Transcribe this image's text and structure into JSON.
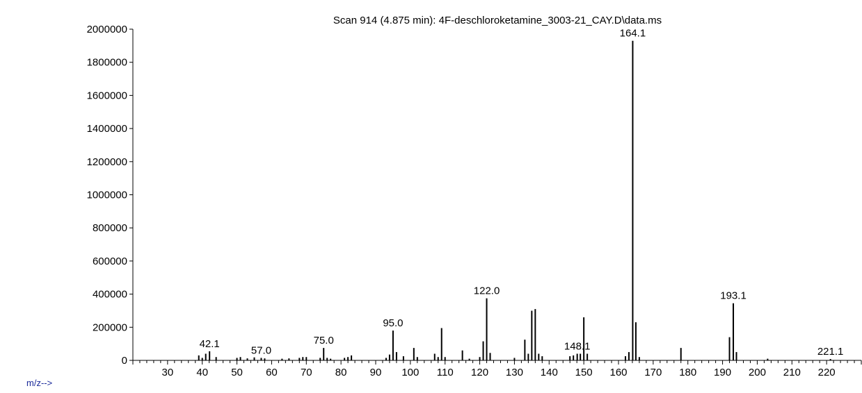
{
  "chart_data": {
    "type": "bar",
    "title": "Scan 914 (4.875 min): 4F-deschloroketamine_3003-21_CAY.D\\data.ms",
    "xlabel": "m/z-->",
    "ylabel": "",
    "xlim": [
      20,
      230
    ],
    "ylim": [
      0,
      2000000
    ],
    "grid": false,
    "x_ticks": [
      30,
      40,
      50,
      60,
      70,
      80,
      90,
      100,
      110,
      120,
      130,
      140,
      150,
      160,
      170,
      180,
      190,
      200,
      210,
      220
    ],
    "y_ticks": [
      0,
      200000,
      400000,
      600000,
      800000,
      1000000,
      1200000,
      1400000,
      1600000,
      1800000,
      2000000
    ],
    "peaks": [
      {
        "mz": 39,
        "intensity": 30000
      },
      {
        "mz": 40,
        "intensity": 15000
      },
      {
        "mz": 41,
        "intensity": 40000
      },
      {
        "mz": 42.1,
        "intensity": 55000,
        "label": "42.1"
      },
      {
        "mz": 44,
        "intensity": 20000
      },
      {
        "mz": 50,
        "intensity": 15000
      },
      {
        "mz": 51,
        "intensity": 20000
      },
      {
        "mz": 53,
        "intensity": 12000
      },
      {
        "mz": 55,
        "intensity": 18000
      },
      {
        "mz": 57.0,
        "intensity": 15000,
        "label": "57.0"
      },
      {
        "mz": 58,
        "intensity": 12000
      },
      {
        "mz": 63,
        "intensity": 10000
      },
      {
        "mz": 65,
        "intensity": 12000
      },
      {
        "mz": 68,
        "intensity": 15000
      },
      {
        "mz": 69,
        "intensity": 20000
      },
      {
        "mz": 70,
        "intensity": 20000
      },
      {
        "mz": 74,
        "intensity": 15000
      },
      {
        "mz": 75.0,
        "intensity": 75000,
        "label": "75.0"
      },
      {
        "mz": 76,
        "intensity": 15000
      },
      {
        "mz": 77,
        "intensity": 10000
      },
      {
        "mz": 81,
        "intensity": 15000
      },
      {
        "mz": 82,
        "intensity": 20000
      },
      {
        "mz": 83,
        "intensity": 30000
      },
      {
        "mz": 93,
        "intensity": 15000
      },
      {
        "mz": 94,
        "intensity": 35000
      },
      {
        "mz": 95.0,
        "intensity": 180000,
        "label": "95.0"
      },
      {
        "mz": 96,
        "intensity": 50000
      },
      {
        "mz": 98,
        "intensity": 25000
      },
      {
        "mz": 101,
        "intensity": 75000
      },
      {
        "mz": 102,
        "intensity": 20000
      },
      {
        "mz": 107,
        "intensity": 40000
      },
      {
        "mz": 108,
        "intensity": 20000
      },
      {
        "mz": 109,
        "intensity": 195000
      },
      {
        "mz": 110,
        "intensity": 20000
      },
      {
        "mz": 115,
        "intensity": 60000
      },
      {
        "mz": 117,
        "intensity": 10000
      },
      {
        "mz": 120,
        "intensity": 20000
      },
      {
        "mz": 121,
        "intensity": 115000
      },
      {
        "mz": 122.0,
        "intensity": 375000,
        "label": "122.0"
      },
      {
        "mz": 123,
        "intensity": 45000
      },
      {
        "mz": 130,
        "intensity": 15000
      },
      {
        "mz": 133,
        "intensity": 125000
      },
      {
        "mz": 134,
        "intensity": 40000
      },
      {
        "mz": 135,
        "intensity": 300000
      },
      {
        "mz": 136,
        "intensity": 310000
      },
      {
        "mz": 137,
        "intensity": 40000
      },
      {
        "mz": 138,
        "intensity": 25000
      },
      {
        "mz": 146,
        "intensity": 25000
      },
      {
        "mz": 147,
        "intensity": 30000
      },
      {
        "mz": 148.1,
        "intensity": 40000,
        "label": "148.1"
      },
      {
        "mz": 149,
        "intensity": 40000
      },
      {
        "mz": 150,
        "intensity": 260000
      },
      {
        "mz": 151,
        "intensity": 40000
      },
      {
        "mz": 162,
        "intensity": 25000
      },
      {
        "mz": 163,
        "intensity": 50000
      },
      {
        "mz": 164.1,
        "intensity": 1930000,
        "label": "164.1"
      },
      {
        "mz": 165,
        "intensity": 230000
      },
      {
        "mz": 166,
        "intensity": 20000
      },
      {
        "mz": 178,
        "intensity": 75000
      },
      {
        "mz": 192,
        "intensity": 140000
      },
      {
        "mz": 193.1,
        "intensity": 345000,
        "label": "193.1"
      },
      {
        "mz": 194,
        "intensity": 50000
      },
      {
        "mz": 203,
        "intensity": 10000
      },
      {
        "mz": 221.1,
        "intensity": 8000,
        "label": "221.1"
      }
    ]
  }
}
